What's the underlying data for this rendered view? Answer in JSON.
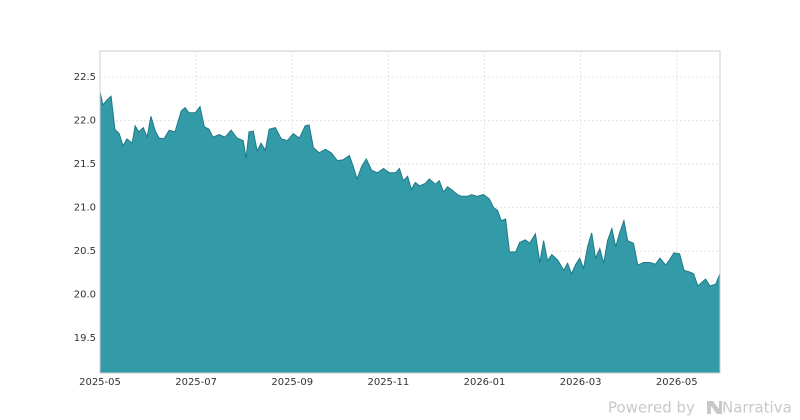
{
  "chart_data": {
    "type": "area",
    "x": [
      0,
      0.06,
      0.15,
      0.23,
      0.31,
      0.4,
      0.48,
      0.56,
      0.67,
      0.73,
      0.81,
      0.9,
      0.98,
      1.06,
      1.15,
      1.23,
      1.33,
      1.44,
      1.56,
      1.69,
      1.77,
      1.85,
      1.98,
      2.08,
      2.17,
      2.27,
      2.35,
      2.48,
      2.6,
      2.73,
      2.85,
      2.98,
      3.04,
      3.1,
      3.19,
      3.27,
      3.35,
      3.44,
      3.52,
      3.65,
      3.77,
      3.9,
      4.02,
      4.15,
      4.27,
      4.35,
      4.44,
      4.56,
      4.69,
      4.81,
      4.94,
      5.06,
      5.19,
      5.27,
      5.35,
      5.44,
      5.54,
      5.65,
      5.77,
      5.9,
      6.02,
      6.15,
      6.23,
      6.31,
      6.4,
      6.48,
      6.56,
      6.65,
      6.77,
      6.85,
      6.98,
      7.06,
      7.15,
      7.23,
      7.31,
      7.44,
      7.52,
      7.65,
      7.73,
      7.85,
      7.98,
      8.1,
      8.19,
      8.27,
      8.35,
      8.44,
      8.52,
      8.65,
      8.73,
      8.85,
      8.94,
      9.06,
      9.15,
      9.23,
      9.31,
      9.4,
      9.52,
      9.65,
      9.73,
      9.81,
      9.9,
      9.98,
      10.06,
      10.15,
      10.23,
      10.31,
      10.4,
      10.48,
      10.56,
      10.65,
      10.73,
      10.81,
      10.9,
      10.98,
      11.1,
      11.19,
      11.31,
      11.44,
      11.56,
      11.65,
      11.77,
      11.85,
      11.94,
      12.06,
      12.15,
      12.27,
      12.35,
      12.44,
      12.52,
      12.6,
      12.69,
      12.81,
      12.9
    ],
    "values": [
      22.33,
      22.18,
      22.24,
      22.28,
      21.9,
      21.85,
      21.71,
      21.79,
      21.74,
      21.94,
      21.87,
      21.92,
      21.81,
      22.05,
      21.88,
      21.8,
      21.79,
      21.89,
      21.87,
      22.11,
      22.15,
      22.09,
      22.09,
      22.16,
      21.93,
      21.9,
      21.81,
      21.84,
      21.81,
      21.89,
      21.8,
      21.77,
      21.57,
      21.87,
      21.88,
      21.65,
      21.74,
      21.66,
      21.9,
      21.92,
      21.79,
      21.77,
      21.85,
      21.8,
      21.94,
      21.95,
      21.69,
      21.63,
      21.67,
      21.63,
      21.54,
      21.55,
      21.6,
      21.47,
      21.33,
      21.47,
      21.56,
      21.43,
      21.4,
      21.45,
      21.4,
      21.4,
      21.45,
      21.31,
      21.36,
      21.21,
      21.29,
      21.25,
      21.28,
      21.33,
      21.27,
      21.31,
      21.18,
      21.24,
      21.21,
      21.15,
      21.13,
      21.13,
      21.15,
      21.13,
      21.15,
      21.1,
      21.0,
      20.97,
      20.85,
      20.87,
      20.49,
      20.49,
      20.6,
      20.63,
      20.59,
      20.7,
      20.37,
      20.62,
      20.39,
      20.46,
      20.4,
      20.28,
      20.36,
      20.24,
      20.35,
      20.42,
      20.3,
      20.56,
      20.71,
      20.42,
      20.53,
      20.36,
      20.62,
      20.76,
      20.55,
      20.71,
      20.85,
      20.62,
      20.59,
      20.34,
      20.37,
      20.37,
      20.35,
      20.42,
      20.34,
      20.4,
      20.48,
      20.47,
      20.28,
      20.26,
      20.24,
      20.1,
      20.14,
      20.18,
      20.1,
      20.12,
      20.24
    ],
    "color": "#339aa7",
    "line_color": "#1f7a87",
    "xlim": [
      0,
      12.9
    ],
    "xticks": [
      {
        "value": 0,
        "label": "2025-05"
      },
      {
        "value": 2,
        "label": "2025-07"
      },
      {
        "value": 4,
        "label": "2025-09"
      },
      {
        "value": 6,
        "label": "2025-11"
      },
      {
        "value": 8,
        "label": "2026-01"
      },
      {
        "value": 10,
        "label": "2026-03"
      },
      {
        "value": 12,
        "label": "2026-05"
      }
    ],
    "ylim": [
      19.1,
      22.8
    ],
    "yticks": [
      19.5,
      {
        "value": 20,
        "label": "20.0"
      },
      20.5,
      {
        "value": 21,
        "label": "21.0"
      },
      21.5,
      {
        "value": 22,
        "label": "22.0"
      },
      22.5
    ],
    "grid": true
  },
  "footer": {
    "powered": "Powered by",
    "brand": "Narrativa"
  }
}
